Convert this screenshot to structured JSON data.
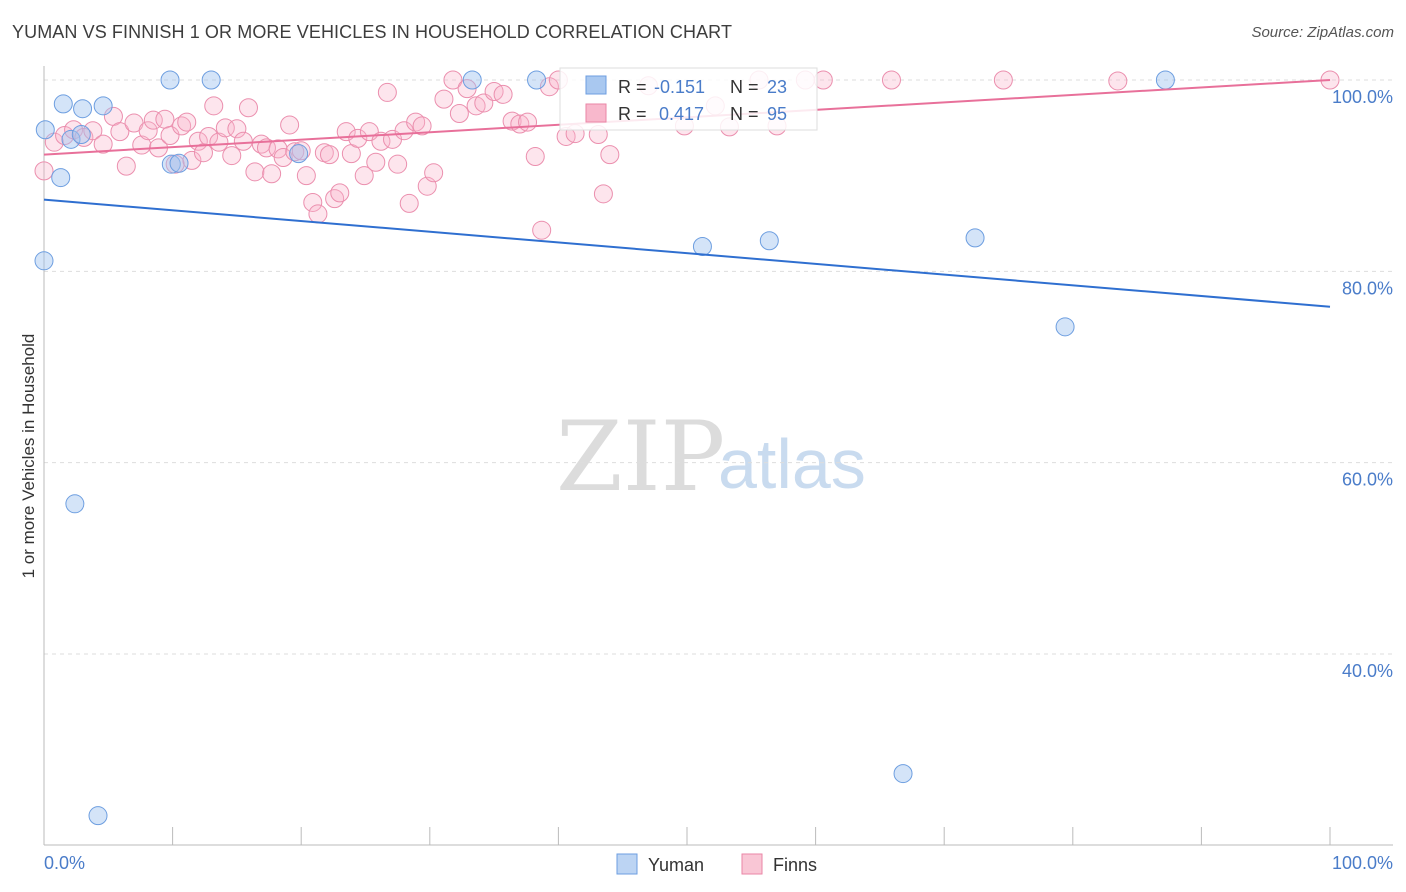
{
  "header": {
    "title": "YUMAN VS FINNISH 1 OR MORE VEHICLES IN HOUSEHOLD CORRELATION CHART",
    "source": "Source: ZipAtlas.com"
  },
  "watermark": {
    "zip": "ZIP",
    "atlas": "atlas"
  },
  "legend_box": {
    "rows": [
      {
        "r_label": "R =",
        "r_value": "-0.151",
        "n_label": "N =",
        "n_value": "23",
        "color": "#a9c8f0",
        "stroke": "#6d9ee0"
      },
      {
        "r_label": "R =",
        "r_value": " 0.417",
        "n_label": "N =",
        "n_value": "95",
        "color": "#f8b8cc",
        "stroke": "#ea86a6"
      }
    ]
  },
  "bottom_legend": [
    {
      "label": "Yuman",
      "color": "#bcd4f3",
      "stroke": "#6d9ee0"
    },
    {
      "label": "Finns",
      "color": "#f9c6d5",
      "stroke": "#ea86a6"
    }
  ],
  "colors": {
    "yuman_fill": "rgba(160,195,240,0.45)",
    "yuman_stroke": "#6d9ee0",
    "yuman_line": "#2f6fd0",
    "finns_fill": "rgba(248,180,202,0.35)",
    "finns_stroke": "#eb8fae",
    "finns_line": "#e8709a",
    "grid": "#dddddd",
    "axis": "#bbbbbb"
  },
  "chart_data": {
    "type": "scatter",
    "title": "YUMAN VS FINNISH 1 OR MORE VEHICLES IN HOUSEHOLD CORRELATION CHART",
    "xlabel": "",
    "ylabel": "1 or more Vehicles in Household",
    "xlim": [
      0,
      100
    ],
    "ylim": [
      22,
      102
    ],
    "x_tick_labels": [
      "0.0%",
      "100.0%"
    ],
    "y_ticks": [
      40,
      60,
      80,
      100
    ],
    "y_tick_labels": [
      "40.0%",
      "60.0%",
      "80.0%",
      "100.0%"
    ],
    "series": [
      {
        "name": "Yuman",
        "r": -0.151,
        "n": 23,
        "trend": {
          "x": [
            0,
            100
          ],
          "y": [
            87.5,
            76.3
          ]
        },
        "points": [
          [
            0.1,
            94.8
          ],
          [
            1.5,
            97.5
          ],
          [
            3.0,
            97.0
          ],
          [
            4.6,
            97.3
          ],
          [
            1.3,
            89.8
          ],
          [
            2.1,
            93.8
          ],
          [
            2.9,
            94.3
          ],
          [
            9.8,
            100.0
          ],
          [
            13.0,
            100.0
          ],
          [
            9.9,
            91.2
          ],
          [
            10.5,
            91.3
          ],
          [
            19.8,
            92.3
          ],
          [
            33.3,
            100.0
          ],
          [
            38.3,
            100.0
          ],
          [
            0.0,
            81.1
          ],
          [
            2.4,
            55.7
          ],
          [
            51.2,
            82.6
          ],
          [
            56.4,
            83.2
          ],
          [
            72.4,
            83.5
          ],
          [
            79.4,
            74.2
          ],
          [
            87.2,
            100.0
          ],
          [
            66.8,
            27.5
          ],
          [
            4.2,
            23.1
          ]
        ]
      },
      {
        "name": "Finns",
        "r": 0.417,
        "n": 95,
        "trend": {
          "x": [
            0,
            100
          ],
          "y": [
            92.2,
            100.0
          ]
        },
        "points": [
          [
            0.0,
            90.5
          ],
          [
            0.8,
            93.5
          ],
          [
            1.6,
            94.2
          ],
          [
            2.3,
            94.8
          ],
          [
            3.1,
            94.0
          ],
          [
            3.8,
            94.7
          ],
          [
            4.6,
            93.3
          ],
          [
            5.4,
            96.2
          ],
          [
            5.9,
            94.6
          ],
          [
            6.4,
            91.0
          ],
          [
            7.0,
            95.5
          ],
          [
            7.6,
            93.2
          ],
          [
            8.1,
            94.7
          ],
          [
            8.5,
            95.8
          ],
          [
            8.9,
            92.9
          ],
          [
            9.4,
            95.9
          ],
          [
            9.8,
            94.2
          ],
          [
            10.2,
            91.2
          ],
          [
            10.7,
            95.2
          ],
          [
            11.1,
            95.6
          ],
          [
            11.5,
            91.6
          ],
          [
            12.0,
            93.6
          ],
          [
            12.4,
            92.4
          ],
          [
            12.8,
            94.1
          ],
          [
            13.2,
            97.3
          ],
          [
            13.6,
            93.5
          ],
          [
            14.1,
            95.0
          ],
          [
            14.6,
            92.1
          ],
          [
            15.0,
            94.9
          ],
          [
            15.5,
            93.6
          ],
          [
            15.9,
            97.1
          ],
          [
            16.4,
            90.4
          ],
          [
            16.9,
            93.3
          ],
          [
            17.3,
            92.9
          ],
          [
            17.7,
            90.2
          ],
          [
            18.2,
            92.8
          ],
          [
            18.6,
            91.9
          ],
          [
            19.1,
            95.3
          ],
          [
            19.5,
            92.5
          ],
          [
            20.0,
            92.6
          ],
          [
            20.4,
            90.0
          ],
          [
            20.9,
            87.2
          ],
          [
            21.3,
            86.0
          ],
          [
            21.8,
            92.4
          ],
          [
            22.2,
            92.2
          ],
          [
            22.6,
            87.6
          ],
          [
            23.0,
            88.2
          ],
          [
            23.5,
            94.6
          ],
          [
            23.9,
            92.3
          ],
          [
            24.4,
            93.9
          ],
          [
            24.9,
            90.0
          ],
          [
            25.3,
            94.6
          ],
          [
            25.8,
            91.4
          ],
          [
            26.2,
            93.6
          ],
          [
            26.7,
            98.7
          ],
          [
            27.1,
            93.8
          ],
          [
            27.5,
            91.2
          ],
          [
            28.0,
            94.7
          ],
          [
            28.4,
            87.1
          ],
          [
            28.9,
            95.6
          ],
          [
            29.4,
            95.2
          ],
          [
            29.8,
            88.9
          ],
          [
            30.3,
            90.3
          ],
          [
            31.1,
            98.0
          ],
          [
            31.8,
            100.0
          ],
          [
            32.3,
            96.5
          ],
          [
            32.9,
            99.1
          ],
          [
            33.6,
            97.3
          ],
          [
            34.2,
            97.6
          ],
          [
            35.0,
            98.8
          ],
          [
            35.7,
            98.5
          ],
          [
            36.4,
            95.7
          ],
          [
            37.0,
            95.4
          ],
          [
            37.6,
            95.6
          ],
          [
            38.2,
            92.0
          ],
          [
            38.7,
            84.3
          ],
          [
            39.3,
            99.3
          ],
          [
            40.0,
            100.0
          ],
          [
            40.6,
            94.1
          ],
          [
            41.3,
            94.4
          ],
          [
            43.1,
            94.3
          ],
          [
            43.5,
            88.1
          ],
          [
            44.0,
            92.2
          ],
          [
            47.0,
            99.4
          ],
          [
            49.8,
            95.2
          ],
          [
            52.2,
            97.3
          ],
          [
            53.3,
            95.1
          ],
          [
            55.6,
            100.0
          ],
          [
            57.0,
            95.2
          ],
          [
            59.2,
            100.0
          ],
          [
            60.6,
            100.0
          ],
          [
            65.9,
            100.0
          ],
          [
            74.6,
            100.0
          ],
          [
            83.5,
            99.9
          ],
          [
            100.0,
            100.0
          ]
        ]
      }
    ]
  }
}
